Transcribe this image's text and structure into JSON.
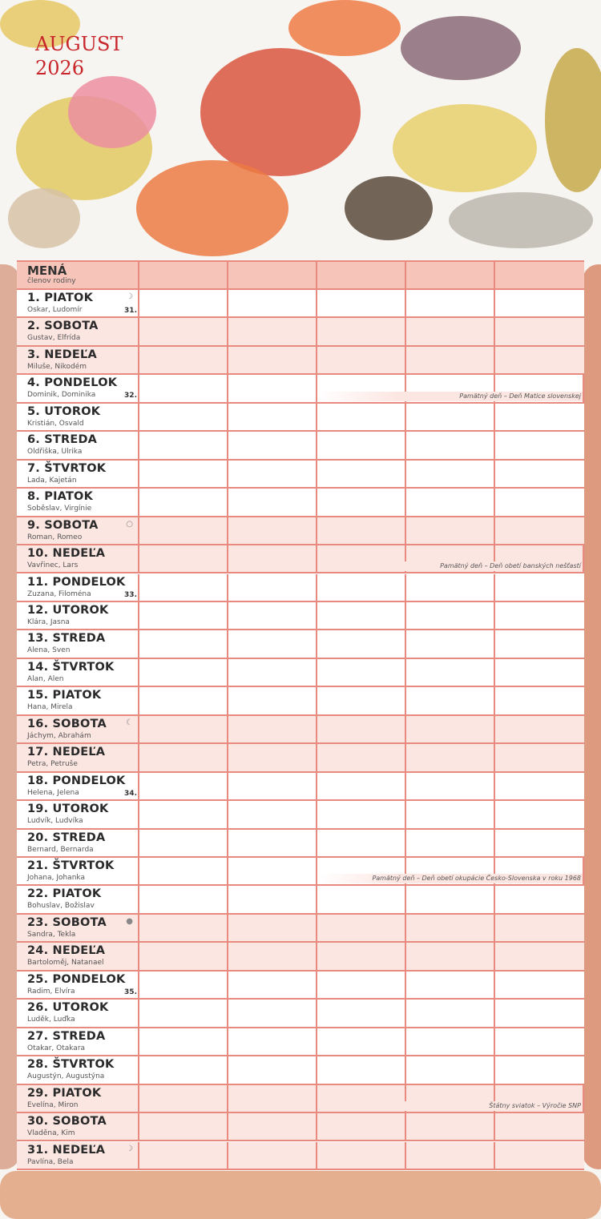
{
  "header": {
    "month": "AUGUST",
    "year": "2026"
  },
  "table": {
    "title": "MENÁ",
    "subtitle": "členov rodiny",
    "member_columns": 5
  },
  "colors": {
    "grid": "#e88a80",
    "weekend": "#fce6e2",
    "header": "#f6c4b9",
    "title": "#c8262a"
  },
  "days": [
    {
      "label": "1. PIATOK",
      "names": "Oskar, Ludomír",
      "week": "31.",
      "moon": "☽",
      "weekend": false
    },
    {
      "label": "2. SOBOTA",
      "names": "Gustav, Elfrída",
      "weekend": true
    },
    {
      "label": "3. NEDEĽA",
      "names": "Miluše, Nikodém",
      "weekend": true
    },
    {
      "label": "4. PONDELOK",
      "names": "Dominik, Dominika",
      "week": "32.",
      "note": "Pamätný deň – Deň Matice slovenskej",
      "weekend": false
    },
    {
      "label": "5. UTOROK",
      "names": "Kristián, Osvald",
      "weekend": false
    },
    {
      "label": "6. STREDA",
      "names": "Oldřiška, Ulrika",
      "weekend": false
    },
    {
      "label": "7. ŠTVRTOK",
      "names": "Lada, Kajetán",
      "weekend": false
    },
    {
      "label": "8. PIATOK",
      "names": "Soběslav, Virgínie",
      "weekend": false
    },
    {
      "label": "9. SOBOTA",
      "names": "Roman, Romeo",
      "moon": "○",
      "weekend": true
    },
    {
      "label": "10. NEDEĽA",
      "names": "Vavřinec, Lars",
      "note": "Pamätný deň – Deň obetí banských nešťastí",
      "weekend": true
    },
    {
      "label": "11. PONDELOK",
      "names": "Zuzana, Filoména",
      "week": "33.",
      "weekend": false
    },
    {
      "label": "12. UTOROK",
      "names": "Klára, Jasna",
      "weekend": false
    },
    {
      "label": "13. STREDA",
      "names": "Alena, Sven",
      "weekend": false
    },
    {
      "label": "14. ŠTVRTOK",
      "names": "Alan, Alen",
      "weekend": false
    },
    {
      "label": "15. PIATOK",
      "names": "Hana, Mirela",
      "weekend": false
    },
    {
      "label": "16. SOBOTA",
      "names": "Jáchym, Abrahám",
      "moon": "☾",
      "weekend": true
    },
    {
      "label": "17. NEDEĽA",
      "names": "Petra, Petruše",
      "weekend": true
    },
    {
      "label": "18. PONDELOK",
      "names": "Helena, Jelena",
      "week": "34.",
      "weekend": false
    },
    {
      "label": "19. UTOROK",
      "names": "Ludvík, Ludvíka",
      "weekend": false
    },
    {
      "label": "20. STREDA",
      "names": "Bernard, Bernarda",
      "weekend": false
    },
    {
      "label": "21. ŠTVRTOK",
      "names": "Johana, Johanka",
      "note": "Pamätný deň – Deň obetí okupácie Česko-Slovenska v roku 1968",
      "weekend": false
    },
    {
      "label": "22. PIATOK",
      "names": "Bohuslav, Božislav",
      "weekend": false
    },
    {
      "label": "23. SOBOTA",
      "names": "Sandra, Tekla",
      "moon": "●",
      "weekend": true
    },
    {
      "label": "24. NEDEĽA",
      "names": "Bartoloměj, Natanael",
      "weekend": true
    },
    {
      "label": "25. PONDELOK",
      "names": "Radim, Elvíra",
      "week": "35.",
      "weekend": false
    },
    {
      "label": "26. UTOROK",
      "names": "Luděk, Luďka",
      "weekend": false
    },
    {
      "label": "27. STREDA",
      "names": "Otakar, Otakara",
      "weekend": false
    },
    {
      "label": "28. ŠTVRTOK",
      "names": "Augustýn, Augustýna",
      "weekend": false
    },
    {
      "label": "29. PIATOK",
      "names": "Evelína, Miron",
      "note": "Štátny sviatok – Výročie SNP",
      "weekend": true
    },
    {
      "label": "30. SOBOTA",
      "names": "Vladěna, Kim",
      "weekend": true
    },
    {
      "label": "31. NEDEĽA",
      "names": "Pavlína, Bela",
      "moon": "☽",
      "weekend": true
    }
  ]
}
